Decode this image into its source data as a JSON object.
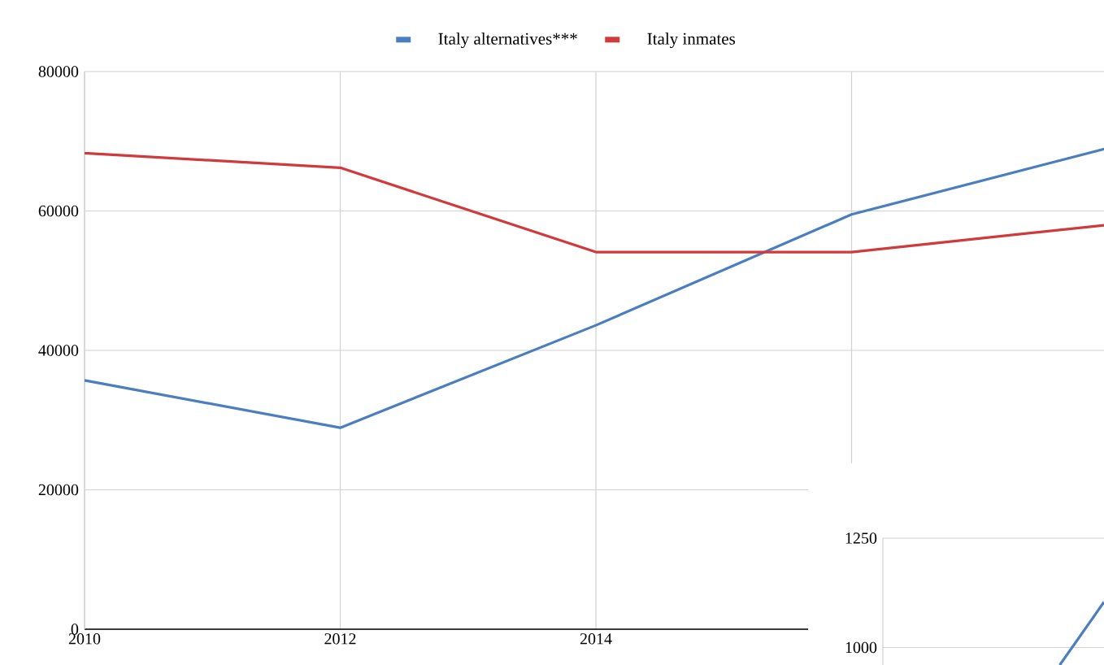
{
  "chart_data": [
    {
      "type": "line",
      "x": [
        2010,
        2012,
        2014,
        2016,
        2018
      ],
      "xlim": [
        2010,
        2018
      ],
      "xticks": [
        2010,
        2012,
        2014,
        {
          "value": 2016,
          "label": null
        }
      ],
      "ylim": [
        0,
        80000
      ],
      "yticks": [
        0,
        20000,
        40000,
        60000,
        80000
      ],
      "grid": true,
      "legend": "top",
      "line_style": "solid",
      "marker": "none",
      "series": [
        {
          "name": "Italy alternatives***",
          "color": "#4a7ebf",
          "values": [
            35700,
            28900,
            43600,
            59500,
            69000
          ]
        },
        {
          "name": "Italy inmates",
          "color": "#d03a3a",
          "values": [
            68300,
            66200,
            54100,
            54100,
            58000
          ]
        }
      ]
    },
    {
      "type": "line",
      "categories": [
        null,
        null,
        null,
        null,
        null,
        null
      ],
      "ylim": [
        960,
        1250
      ],
      "yticks": [
        1000,
        1250
      ],
      "grid": "y",
      "tick_labels": "y",
      "series": [
        {
          "color": "#4a7ebf",
          "values": [
            null,
            null,
            null,
            null,
            960,
            1104
          ]
        }
      ]
    }
  ]
}
